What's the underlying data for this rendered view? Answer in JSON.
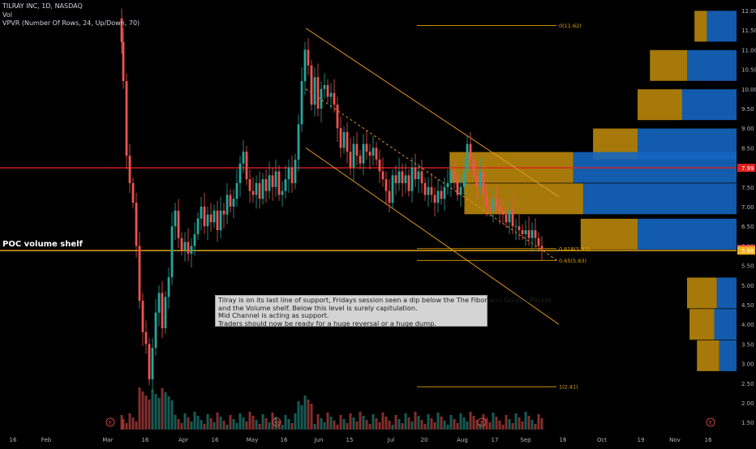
{
  "legend": {
    "symbol": "TILRAY INC, 1D, NASDAQ",
    "vol": "Vol",
    "vpvr": "VPVR (Number Of Rows, 24, Up/Down, 70)"
  },
  "poc_label": "POC volume shelf",
  "note_lines": [
    "Tilray is on its last line of support, Fridays session seen a dip below the The Fibonacci Golden Pocket",
    "and the Volume shelf. Below this level is surely capitulation.",
    "Mid Channel is acting as support.",
    "Traders should now be ready for a huge reversal or a huge dump."
  ],
  "colors": {
    "up": "#26a69a",
    "down": "#ef5350",
    "background": "#000000",
    "fib": "#e6a400",
    "channel": "#f0a020",
    "red_line": "#e02020",
    "poc_line": "#f2b01e",
    "vp_up": "#1565c0",
    "vp_down": "#b8860b"
  },
  "chart_data": {
    "type": "candlestick",
    "title": "TILRAY INC, 1D, NASDAQ",
    "x_tick_labels": [
      "16",
      "Feb",
      "Mar",
      "16",
      "Apr",
      "16",
      "May",
      "16",
      "Jun",
      "15",
      "Jul",
      "20",
      "Aug",
      "17",
      "Sep",
      "16",
      "Oct",
      "19",
      "Nov",
      "16"
    ],
    "y_tick_labels": [
      "12.00",
      "11.50",
      "11.00",
      "10.50",
      "10.00",
      "9.50",
      "9.00",
      "8.50",
      "8.00",
      "7.50",
      "7.00",
      "6.50",
      "6.00",
      "5.50",
      "5.00",
      "4.50",
      "4.00",
      "3.50",
      "3.00",
      "2.50",
      "2.00",
      "1.50"
    ],
    "ylim": [
      1.2,
      12.2
    ],
    "price_badges": [
      {
        "text": "7.99",
        "value": 7.99,
        "color": "#e02020"
      },
      {
        "text": "5.92",
        "value": 5.92,
        "color": "#ef5350"
      },
      {
        "text": "5.88",
        "value": 5.88,
        "color": "#f2b01e"
      }
    ],
    "horizontal_lines": [
      {
        "name": "resistance",
        "value": 7.99,
        "color": "#e02020"
      },
      {
        "name": "poc",
        "value": 5.88,
        "color": "#f2b01e"
      }
    ],
    "fib_levels": [
      {
        "label": "0(11.62)",
        "value": 11.62
      },
      {
        "label": "0.618(5.93)",
        "value": 5.93
      },
      {
        "label": "0.65(5.63)",
        "value": 5.63
      },
      {
        "label": "1(2.41)",
        "value": 2.41
      }
    ],
    "channel": {
      "upper": {
        "x1": 2020.39,
        "y1": 11.55,
        "x2": 2020.7,
        "y2": 7.25
      },
      "lower": {
        "x1": 2020.39,
        "y1": 8.5,
        "x2": 2020.7,
        "y2": 4.0
      },
      "mid": {
        "x1": 2020.39,
        "y1": 10.0,
        "x2": 2020.7,
        "y2": 5.6
      }
    },
    "volume_profile": [
      {
        "price": 11.6,
        "up": 0.12,
        "down": 0.05
      },
      {
        "price": 10.6,
        "up": 0.2,
        "down": 0.15
      },
      {
        "price": 9.6,
        "up": 0.22,
        "down": 0.18
      },
      {
        "price": 8.6,
        "up": 0.4,
        "down": 0.18
      },
      {
        "price": 8.0,
        "up": 0.66,
        "down": 0.5
      },
      {
        "price": 7.2,
        "up": 0.62,
        "down": 0.48
      },
      {
        "price": 6.3,
        "up": 0.4,
        "down": 0.23
      },
      {
        "price": 4.8,
        "up": 0.08,
        "down": 0.12
      },
      {
        "price": 4.0,
        "up": 0.09,
        "down": 0.1
      },
      {
        "price": 3.2,
        "up": 0.07,
        "down": 0.09
      }
    ],
    "candles_summary": [
      {
        "date": "2020-03-02",
        "o": 11.8,
        "h": 12.2,
        "l": 11.0,
        "c": 11.2
      },
      {
        "date": "2020-03-18",
        "o": 4.5,
        "h": 4.9,
        "l": 2.4,
        "c": 2.6
      },
      {
        "date": "2020-03-25",
        "o": 3.6,
        "h": 5.2,
        "l": 3.2,
        "c": 5.0
      },
      {
        "date": "2020-04-08",
        "o": 6.0,
        "h": 6.7,
        "l": 5.4,
        "c": 6.5
      },
      {
        "date": "2020-05-29",
        "o": 9.4,
        "h": 11.55,
        "l": 9.0,
        "c": 11.2
      },
      {
        "date": "2020-07-22",
        "o": 7.8,
        "h": 8.1,
        "l": 7.1,
        "c": 7.6
      },
      {
        "date": "2020-08-12",
        "o": 7.9,
        "h": 8.7,
        "l": 7.6,
        "c": 8.6
      },
      {
        "date": "2020-09-04",
        "o": 6.05,
        "h": 6.2,
        "l": 5.5,
        "c": 5.92
      }
    ]
  }
}
